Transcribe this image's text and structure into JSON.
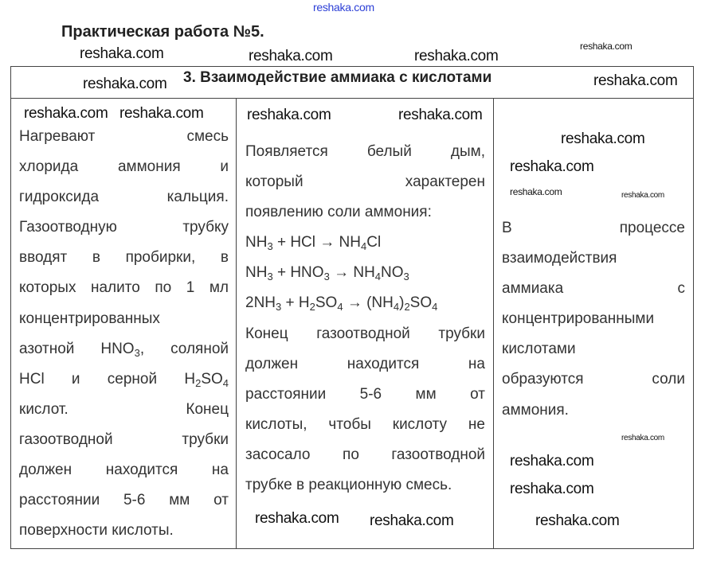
{
  "title": "Практическая работа №5.",
  "table": {
    "header": "3.  Взаимодействие аммиака с кислотами",
    "col1": [
      "Нагревают смесь",
      "хлорида аммония и",
      "гидроксида кальция.",
      "Газоотводную трубку",
      "вводят в пробирки, в",
      "которых налито по 1 мл",
      "концентрированных",
      {
        "parts": [
          {
            "t": "азотной HNO"
          },
          {
            "t": "3",
            "sub": true
          },
          {
            "t": ", соляной"
          }
        ]
      },
      {
        "parts": [
          {
            "t": "HCl и серной H"
          },
          {
            "t": "2",
            "sub": true
          },
          {
            "t": "SO"
          },
          {
            "t": "4",
            "sub": true
          }
        ]
      },
      "кислот. Конец",
      "газоотводной трубки",
      "должен находится на",
      "расстоянии 5-6 мм от",
      "поверхности кислоты."
    ],
    "col2": [
      "Появляется белый дым,",
      "который характерен",
      "появлению соли аммония:",
      {
        "parts": [
          {
            "t": "NH"
          },
          {
            "t": "3",
            "sub": true
          },
          {
            "t": " + HCl → NH"
          },
          {
            "t": "4",
            "sub": true
          },
          {
            "t": "Cl"
          }
        ]
      },
      {
        "parts": [
          {
            "t": "NH"
          },
          {
            "t": "3",
            "sub": true
          },
          {
            "t": " + HNO"
          },
          {
            "t": "3",
            "sub": true
          },
          {
            "t": " → NH"
          },
          {
            "t": "4",
            "sub": true
          },
          {
            "t": "NO"
          },
          {
            "t": "3",
            "sub": true
          }
        ]
      },
      {
        "parts": [
          {
            "t": "2NH"
          },
          {
            "t": "3",
            "sub": true
          },
          {
            "t": " + H"
          },
          {
            "t": "2",
            "sub": true
          },
          {
            "t": "SO"
          },
          {
            "t": "4",
            "sub": true
          },
          {
            "t": " → (NH"
          },
          {
            "t": "4",
            "sub": true
          },
          {
            "t": ")"
          },
          {
            "t": "2",
            "sub": true
          },
          {
            "t": "SO"
          },
          {
            "t": "4",
            "sub": true
          }
        ]
      },
      "Конец газоотводной трубки",
      "должен находится на",
      "расстоянии 5-6 мм от",
      "кислоты, чтобы кислоту не",
      "засосало по газоотводной",
      "трубке в реакционную смесь."
    ],
    "col3": [
      "В процессе",
      "взаимодействия",
      "аммиака с",
      "концентрированными",
      "кислотами",
      "образуются соли",
      "аммония."
    ]
  },
  "watermarks": [
    "reshaka.com",
    "reshaka.com",
    "reshaka.com",
    "reshaka.com",
    "reshaka.com",
    "reshaka.com",
    "reshaka.com",
    "reshaka.com",
    "reshaka.com",
    "reshaka.com",
    "reshaka.com",
    "reshaka.com",
    "reshaka.com",
    "reshaka.com",
    "reshaka.com",
    "reshaka.com",
    "reshaka.com",
    "reshaka.com",
    "reshaka.com",
    "reshaka.com",
    "reshaka.com"
  ]
}
